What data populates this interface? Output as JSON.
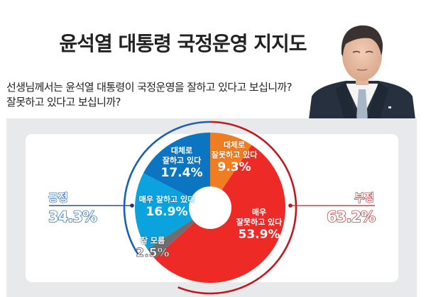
{
  "header": {
    "title": "윤석열 대통령 국정운영 지지도",
    "question_line1": "선생님께서는 윤석열 대통령이 국정운영을 잘하고 있다고 보십니까?",
    "question_line2": "잘못하고 있다고 보십니까?",
    "photo": "portrait-photo"
  },
  "summary": {
    "positive": {
      "label": "긍정",
      "value": "34.3%",
      "color": "#1a5fb4"
    },
    "negative": {
      "label": "부정",
      "value": "63.2%",
      "color": "#c4161c"
    }
  },
  "segments": [
    {
      "label": "대체로 잘못하고 있다",
      "label_line1": "대체로",
      "label_line2": "잘못하고 있다",
      "value": "9.3%",
      "color": "#f07d22"
    },
    {
      "label": "매우 잘못하고 있다",
      "label_line1": "매우",
      "label_line2": "잘못하고 있다",
      "value": "53.9%",
      "color": "#ee2a27"
    },
    {
      "label": "잘 모름",
      "label_line1": "잘 모름",
      "label_line2": "",
      "value": "2.5%",
      "color": "#6d6e71"
    },
    {
      "label": "매우 잘하고 있다",
      "label_line1": "매우 잘하고 있다",
      "label_line2": "",
      "value": "16.9%",
      "color": "#0aa3de"
    },
    {
      "label": "대체로 잘하고 있다",
      "label_line1": "대체로",
      "label_line2": "잘하고 있다",
      "value": "17.4%",
      "color": "#0b75c1"
    }
  ],
  "chart_data": {
    "type": "pie",
    "title": "윤석열 대통령 국정운영 지지도",
    "subtitle": "선생님께서는 윤석열 대통령이 국정운영을 잘하고 있다고 보십니까? 잘못하고 있다고 보십니까?",
    "donut": true,
    "categories": [
      "대체로 잘못하고 있다",
      "매우 잘못하고 있다",
      "잘 모름",
      "매우 잘하고 있다",
      "대체로 잘하고 있다"
    ],
    "values": [
      9.3,
      53.9,
      2.5,
      16.9,
      17.4
    ],
    "colors": [
      "#f07d22",
      "#ee2a27",
      "#6d6e71",
      "#0aa3de",
      "#0b75c1"
    ],
    "groups": [
      {
        "name": "긍정",
        "value": 34.3,
        "members": [
          "매우 잘하고 있다",
          "대체로 잘하고 있다"
        ]
      },
      {
        "name": "부정",
        "value": 63.2,
        "members": [
          "대체로 잘못하고 있다",
          "매우 잘못하고 있다"
        ]
      }
    ],
    "unit": "%"
  }
}
